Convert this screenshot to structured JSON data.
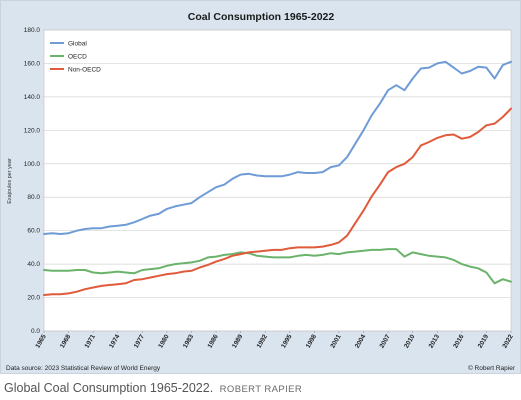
{
  "chart_data": {
    "type": "line",
    "title": "Coal Consumption 1965-2022",
    "xlabel": "",
    "ylabel": "Exajoules per year",
    "ylim": [
      0,
      180
    ],
    "yticks": [
      "0.0",
      "20.0",
      "40.0",
      "60.0",
      "80.0",
      "100.0",
      "120.0",
      "140.0",
      "160.0",
      "180.0"
    ],
    "xticks": [
      "1965",
      "1968",
      "1971",
      "1974",
      "1977",
      "1980",
      "1983",
      "1986",
      "1989",
      "1992",
      "1995",
      "1998",
      "2001",
      "2004",
      "2007",
      "2010",
      "2013",
      "2016",
      "2019",
      "2022"
    ],
    "x": [
      1965,
      1966,
      1967,
      1968,
      1969,
      1970,
      1971,
      1972,
      1973,
      1974,
      1975,
      1976,
      1977,
      1978,
      1979,
      1980,
      1981,
      1982,
      1983,
      1984,
      1985,
      1986,
      1987,
      1988,
      1989,
      1990,
      1991,
      1992,
      1993,
      1994,
      1995,
      1996,
      1997,
      1998,
      1999,
      2000,
      2001,
      2002,
      2003,
      2004,
      2005,
      2006,
      2007,
      2008,
      2009,
      2010,
      2011,
      2012,
      2013,
      2014,
      2015,
      2016,
      2017,
      2018,
      2019,
      2020,
      2021,
      2022
    ],
    "grid": true,
    "legend_position": "top-left",
    "series": [
      {
        "name": "Global",
        "color": "#6f9bd6",
        "values": [
          58,
          58.5,
          58,
          58.5,
          60,
          61,
          61.5,
          61.5,
          62.5,
          63,
          63.5,
          65,
          67,
          69,
          70,
          73,
          74.5,
          75.5,
          76.5,
          80,
          83,
          86,
          87.5,
          91,
          93.5,
          94,
          93,
          92.5,
          92.5,
          92.5,
          93.5,
          95,
          94.5,
          94.5,
          95,
          98,
          99,
          104,
          112,
          120,
          129,
          136,
          144,
          147,
          144,
          151,
          157,
          157.5,
          160,
          161,
          157.5,
          154,
          155.5,
          158,
          157.5,
          151,
          159,
          161
        ]
      },
      {
        "name": "OECD",
        "color": "#6bb36b",
        "values": [
          36.5,
          36,
          36,
          36,
          36.5,
          36.5,
          35,
          34.5,
          35,
          35.5,
          35,
          34.5,
          36.5,
          37,
          37.5,
          39,
          40,
          40.5,
          41,
          42,
          44,
          44.5,
          45.5,
          46,
          47,
          46.5,
          45,
          44.5,
          44,
          44,
          44,
          45,
          45.5,
          45,
          45.5,
          46.5,
          46,
          47,
          47.5,
          48,
          48.5,
          48.5,
          49,
          49,
          44.5,
          47,
          46,
          45,
          44.5,
          44,
          42.5,
          40,
          38.5,
          37.5,
          35,
          28.5,
          31,
          29.5
        ]
      },
      {
        "name": "Non-OECD",
        "color": "#e05a3c",
        "values": [
          21.5,
          22,
          22,
          22.5,
          23.5,
          25,
          26,
          27,
          27.5,
          28,
          28.5,
          30.5,
          31,
          32,
          33,
          34,
          34.5,
          35.5,
          36,
          38,
          39.5,
          41.5,
          43,
          45,
          46,
          47,
          47.5,
          48,
          48.5,
          48.5,
          49.5,
          50,
          50,
          50,
          50.5,
          51.5,
          53,
          57,
          64.5,
          72,
          80.5,
          87.5,
          95,
          98,
          100,
          104,
          111,
          113,
          115.5,
          117,
          117.5,
          115,
          116,
          119,
          123,
          124,
          128,
          133
        ]
      }
    ]
  },
  "data_source": "Data source: 2023 Statistical Review of World Energy",
  "copyright": "© Robert Rapier",
  "caption": {
    "text": "Global Coal Consumption 1965-2022.",
    "credit": "ROBERT RAPIER"
  }
}
